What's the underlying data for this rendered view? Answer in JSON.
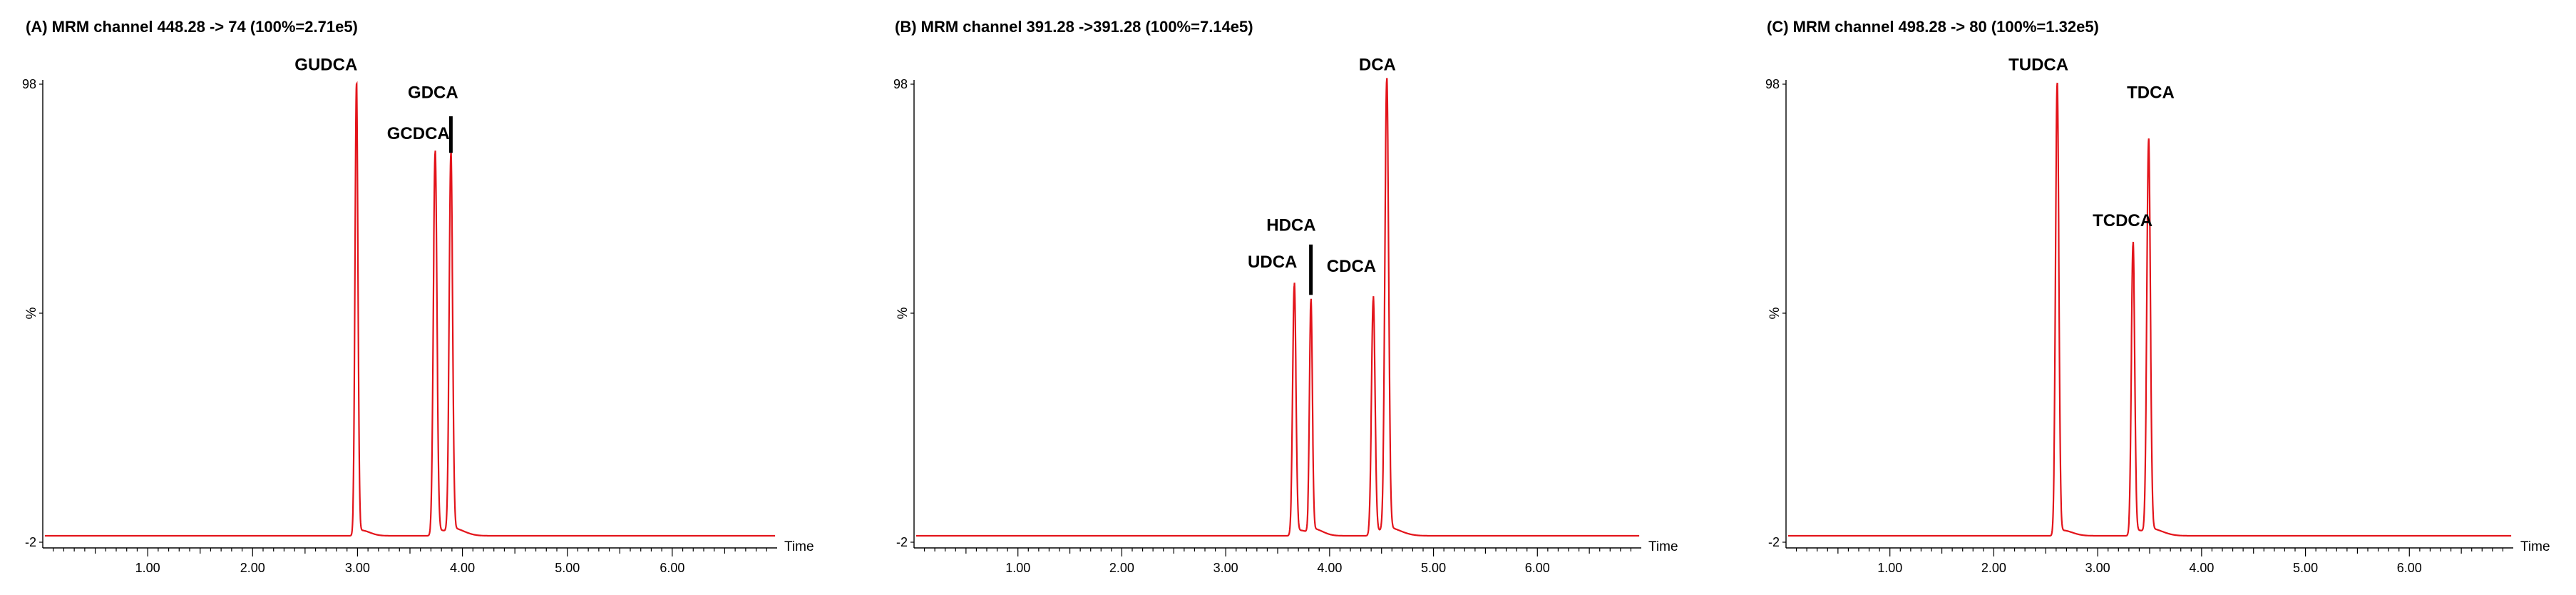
{
  "chart_data": [
    {
      "type": "line",
      "title": "(A) MRM channel 448.28 -> 74 (100%=2.71e5)",
      "xlabel": "Time",
      "ylabel": "%",
      "xlim": [
        0,
        7.0
      ],
      "ylim": [
        -2,
        98
      ],
      "y_ticks": [
        "98",
        "%",
        "-2"
      ],
      "x_ticks": [
        1.0,
        2.0,
        3.0,
        4.0,
        5.0,
        6.0
      ],
      "x_tick_labels": [
        "1.00",
        "2.00",
        "3.00",
        "4.00",
        "5.00",
        "6.00"
      ],
      "peaks": [
        {
          "label": "GUDCA",
          "x": 2.99,
          "y": 98,
          "sigma": 0.014
        },
        {
          "label": "GCDCA",
          "x": 3.74,
          "y": 83,
          "sigma": 0.017
        },
        {
          "label": "GDCA",
          "x": 3.89,
          "y": 82,
          "sigma": 0.016
        }
      ],
      "labels": [
        {
          "text": "GUDCA",
          "x": 2.7,
          "y": 101,
          "anchor": "middle"
        },
        {
          "text": "GCDCA",
          "x": 3.58,
          "y": 86,
          "anchor": "middle"
        },
        {
          "text": "GDCA",
          "x": 3.72,
          "y": 95,
          "anchor": "middle"
        }
      ],
      "bars": [
        {
          "x": 3.89,
          "y1": 83,
          "y2": 91
        }
      ]
    },
    {
      "type": "line",
      "title": "(B) MRM channel 391.28 ->391.28 (100%=7.14e5)",
      "xlabel": "Time",
      "ylabel": "%",
      "xlim": [
        0,
        7.0
      ],
      "ylim": [
        -2,
        98
      ],
      "y_ticks": [
        "98",
        "%",
        "-2"
      ],
      "x_ticks": [
        1.0,
        2.0,
        3.0,
        4.0,
        5.0,
        6.0
      ],
      "x_tick_labels": [
        "1.00",
        "2.00",
        "3.00",
        "4.00",
        "5.00",
        "6.00"
      ],
      "peaks": [
        {
          "label": "UDCA",
          "x": 3.66,
          "y": 54,
          "sigma": 0.016
        },
        {
          "label": "HDCA",
          "x": 3.82,
          "y": 50,
          "sigma": 0.014
        },
        {
          "label": "CDCA",
          "x": 4.42,
          "y": 51,
          "sigma": 0.017
        },
        {
          "label": "DCA",
          "x": 4.55,
          "y": 98,
          "sigma": 0.018
        }
      ],
      "labels": [
        {
          "text": "UDCA",
          "x": 3.45,
          "y": 58,
          "anchor": "middle"
        },
        {
          "text": "HDCA",
          "x": 3.63,
          "y": 66,
          "anchor": "middle"
        },
        {
          "text": "CDCA",
          "x": 4.21,
          "y": 57,
          "anchor": "middle"
        },
        {
          "text": "DCA",
          "x": 4.46,
          "y": 101,
          "anchor": "middle"
        }
      ],
      "bars": [
        {
          "x": 3.82,
          "y1": 52,
          "y2": 63
        }
      ]
    },
    {
      "type": "line",
      "title": "(C) MRM channel 498.28 -> 80 (100%=1.32e5)",
      "xlabel": "Time",
      "ylabel": "%",
      "xlim": [
        0,
        7.0
      ],
      "ylim": [
        -2,
        98
      ],
      "y_ticks": [
        "98",
        "%",
        "-2"
      ],
      "x_ticks": [
        1.0,
        2.0,
        3.0,
        4.0,
        5.0,
        6.0
      ],
      "x_tick_labels": [
        "1.00",
        "2.00",
        "3.00",
        "4.00",
        "5.00",
        "6.00"
      ],
      "peaks": [
        {
          "label": "TUDCA",
          "x": 2.61,
          "y": 98,
          "sigma": 0.016
        },
        {
          "label": "TCDCA",
          "x": 3.34,
          "y": 63,
          "sigma": 0.016
        },
        {
          "label": "TDCA",
          "x": 3.49,
          "y": 85,
          "sigma": 0.017
        }
      ],
      "labels": [
        {
          "text": "TUDCA",
          "x": 2.43,
          "y": 101,
          "anchor": "middle"
        },
        {
          "text": "TCDCA",
          "x": 3.24,
          "y": 67,
          "anchor": "middle"
        },
        {
          "text": "TDCA",
          "x": 3.51,
          "y": 95,
          "anchor": "middle"
        }
      ],
      "bars": []
    }
  ]
}
